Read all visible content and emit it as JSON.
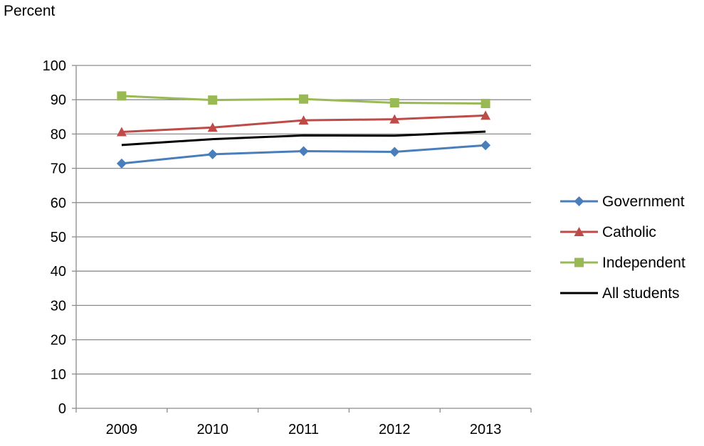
{
  "chart_data": {
    "type": "line",
    "title": "",
    "xlabel": "",
    "ylabel": "Percent",
    "categories": [
      "2009",
      "2010",
      "2011",
      "2012",
      "2013"
    ],
    "ylim": [
      0,
      100
    ],
    "yticks": [
      0,
      10,
      20,
      30,
      40,
      50,
      60,
      70,
      80,
      90,
      100
    ],
    "grid": true,
    "legend_position": "right",
    "series": [
      {
        "name": "Government",
        "values": [
          71.4,
          74.1,
          75.0,
          74.8,
          76.7
        ],
        "color": "#4a7ebb",
        "marker": "diamond"
      },
      {
        "name": "Catholic",
        "values": [
          80.6,
          81.9,
          84.0,
          84.3,
          85.4
        ],
        "color": "#be4b48",
        "marker": "triangle"
      },
      {
        "name": "Independent",
        "values": [
          91.1,
          89.9,
          90.2,
          89.1,
          88.9
        ],
        "color": "#98b954",
        "marker": "square"
      },
      {
        "name": "All students",
        "values": [
          76.8,
          78.5,
          79.6,
          79.5,
          80.7
        ],
        "color": "#000000",
        "marker": "none"
      }
    ]
  }
}
